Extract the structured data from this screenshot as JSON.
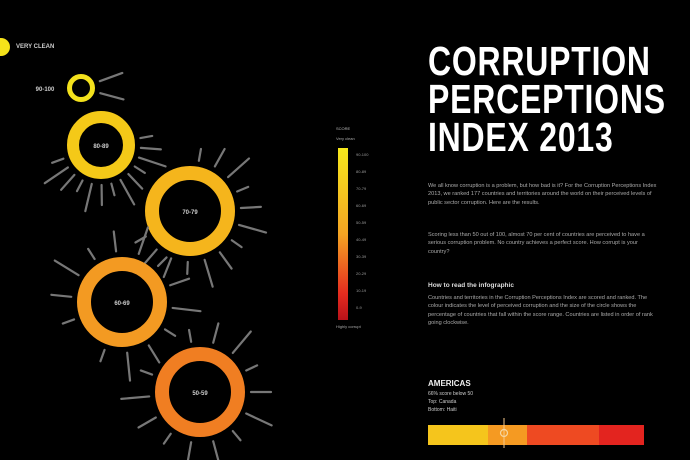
{
  "legend_label": "VERY CLEAN",
  "title": [
    "CORRUPTION",
    "PERCEPTIONS",
    "INDEX 2013"
  ],
  "intro": "We all know corruption is a problem, but how bad is it? For the Corruption Perceptions Index 2013, we ranked 177 countries and territories around the world on their perceived levels of public sector corruption. Here are the results.",
  "intro2": "Scoring less than 50 out of 100, almost 70 per cent of countries are perceived to have a serious corruption problem. No country achieves a perfect score. How corrupt is your country?",
  "how_heading": "How to read the infographic",
  "how_text": "Countries and territories in the Corruption Perceptions Index are scored and ranked. The colour indicates the level of perceived corruption and the size of the circle shows the percentage of countries that fall within the score range. Countries are listed in order of rank going clockwise.",
  "scale": {
    "heading": "SCORE",
    "top": "Very clean",
    "bottom": "Highly corrupt",
    "ticks": [
      "90-100",
      "80-89",
      "70-79",
      "60-69",
      "50-59",
      "40-49",
      "30-39",
      "20-29",
      "10-19",
      "0-9"
    ]
  },
  "rings": [
    {
      "label": "90-100",
      "color": "#f3e11c"
    },
    {
      "label": "80-89",
      "color": "#f4c918"
    },
    {
      "label": "70-79",
      "color": "#f5b51c"
    },
    {
      "label": "60-69",
      "color": "#f39a22"
    },
    {
      "label": "50-59",
      "color": "#f07e22"
    }
  ],
  "region": {
    "name": "AMERICAS",
    "stat1": "66% score below 50",
    "stat2": "Top: Canada",
    "stat3": "Bottom: Haiti"
  },
  "region_bar_colors": [
    "#f5c51c",
    "#f59a22",
    "#ee4a22",
    "#e3241f"
  ]
}
